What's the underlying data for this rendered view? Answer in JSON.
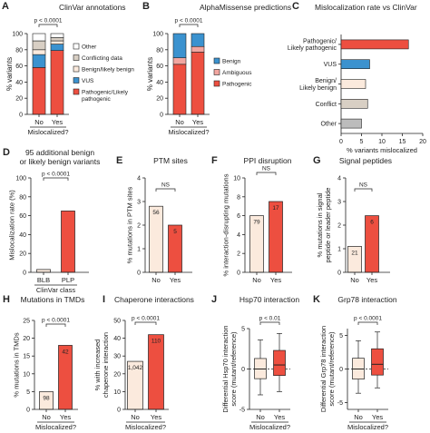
{
  "colors": {
    "red": "#ed4f40",
    "blue": "#3b92cf",
    "light_red": "#f2a6a0",
    "cream": "#fbeadd",
    "beige": "#d8cfc4",
    "white": "#ffffff",
    "gray": "#bcbcbc",
    "axis": "#222222"
  },
  "chart_data": [
    {
      "id": "A",
      "panel_letter": "A",
      "type": "bar",
      "stacked": true,
      "title": "ClinVar annotations",
      "ylabel": "% variants",
      "xlabel": "Mislocalized?",
      "categories": [
        "No",
        "Yes"
      ],
      "ylim": [
        0,
        100
      ],
      "yticks": [
        "0",
        "20",
        "40",
        "60",
        "80",
        "100"
      ],
      "bracket": "p < 0.0001",
      "series": [
        {
          "name": "Pathogenic/Likely pathogenic",
          "color": "#ed4f40",
          "values": [
            58,
            79
          ]
        },
        {
          "name": "VUS",
          "color": "#3b92cf",
          "values": [
            16,
            8
          ]
        },
        {
          "name": "Benign/likely benign",
          "color": "#fbeadd",
          "values": [
            6,
            4
          ]
        },
        {
          "name": "Conflicting data",
          "color": "#d8cfc4",
          "values": [
            11,
            4
          ]
        },
        {
          "name": "Other",
          "color": "#ffffff",
          "values": [
            9,
            5
          ]
        }
      ],
      "legend": [
        "Other",
        "Conflicting data",
        "Benign/likely benign",
        "VUS",
        "Pathogenic/Likely pathogenic"
      ]
    },
    {
      "id": "B",
      "panel_letter": "B",
      "type": "bar",
      "stacked": true,
      "title": "AlphaMissense predictions",
      "ylabel": "% variants",
      "xlabel": "Mislocalized?",
      "categories": [
        "No",
        "Yes"
      ],
      "ylim": [
        0,
        100
      ],
      "yticks": [
        "0",
        "20",
        "40",
        "60",
        "80",
        "100"
      ],
      "bracket": "p < 0.0001",
      "series": [
        {
          "name": "Pathogenic",
          "color": "#ed4f40",
          "values": [
            62,
            77
          ]
        },
        {
          "name": "Ambiguous",
          "color": "#f2a6a0",
          "values": [
            8,
            7
          ]
        },
        {
          "name": "Benign",
          "color": "#3b92cf",
          "values": [
            30,
            16
          ]
        }
      ],
      "legend": [
        "Benign",
        "Ambiguous",
        "Pathogenic"
      ]
    },
    {
      "id": "C",
      "panel_letter": "C",
      "type": "bar",
      "orientation": "horizontal",
      "title": "Mislocalization rate vs ClinVar",
      "xlabel": "% variants mislocalized",
      "categories": [
        "Pathogenic/ Likely pathogenic",
        "VUS",
        "Benign/ Likely benign",
        "Conflict",
        "Other"
      ],
      "values": [
        16.5,
        7,
        6,
        6.5,
        5
      ],
      "colors": [
        "#ed4f40",
        "#3b92cf",
        "#fbeadd",
        "#d8cfc4",
        "#bcbcbc"
      ],
      "xlim": [
        0,
        20
      ],
      "xticks": [
        "0",
        "5",
        "10",
        "15",
        "20"
      ]
    },
    {
      "id": "D",
      "panel_letter": "D",
      "type": "bar",
      "title": "95 additional benign or likely benign variants",
      "ylabel": "Mislocalization rate (%)",
      "xlabel": "ClinVar class",
      "categories": [
        "BLB",
        "PLP"
      ],
      "values": [
        3,
        65
      ],
      "colors": [
        "#fbeadd",
        "#ed4f40"
      ],
      "ylim": [
        0,
        100
      ],
      "yticks": [
        "0",
        "20",
        "40",
        "60",
        "80",
        "100"
      ],
      "bracket": "p < 0.0001"
    },
    {
      "id": "E",
      "panel_letter": "E",
      "type": "bar",
      "title": "PTM sites",
      "ylabel": "% mutations in PTM sites",
      "categories": [
        "No",
        "Yes"
      ],
      "values": [
        2.8,
        2.0
      ],
      "labels": [
        "56",
        "5"
      ],
      "colors": [
        "#fbeadd",
        "#ed4f40"
      ],
      "ylim": [
        0,
        4
      ],
      "yticks": [
        "0",
        "1",
        "2",
        "3",
        "4"
      ],
      "bracket": "NS"
    },
    {
      "id": "F",
      "panel_letter": "F",
      "type": "bar",
      "title": "PPI disruption",
      "ylabel": "% interaction-disrupting mutations",
      "categories": [
        "No",
        "Yes"
      ],
      "values": [
        6,
        7.5
      ],
      "labels": [
        "79",
        "17"
      ],
      "colors": [
        "#fbeadd",
        "#ed4f40"
      ],
      "ylim": [
        0,
        10
      ],
      "yticks": [
        "0",
        "2",
        "4",
        "6",
        "8",
        "10"
      ],
      "bracket": "NS"
    },
    {
      "id": "G",
      "panel_letter": "G",
      "type": "bar",
      "title": "Signal peptides",
      "ylabel": "% mutations in signal peptide or leader peptide",
      "categories": [
        "No",
        "Yes"
      ],
      "values": [
        1.1,
        2.4
      ],
      "labels": [
        "21",
        "6"
      ],
      "colors": [
        "#fbeadd",
        "#ed4f40"
      ],
      "ylim": [
        0,
        4
      ],
      "yticks": [
        "0",
        "1",
        "2",
        "3",
        "4"
      ],
      "bracket": "NS"
    },
    {
      "id": "H",
      "panel_letter": "H",
      "type": "bar",
      "title": "Mutations in TMDs",
      "ylabel": "% mutations in TMDs",
      "xlabel": "Mislocalized?",
      "categories": [
        "No",
        "Yes"
      ],
      "values": [
        5,
        18
      ],
      "labels": [
        "98",
        "42"
      ],
      "colors": [
        "#fbeadd",
        "#ed4f40"
      ],
      "ylim": [
        0,
        25
      ],
      "yticks": [
        "0",
        "5",
        "10",
        "15",
        "20",
        "25"
      ],
      "bracket": "p < 0.0001"
    },
    {
      "id": "I",
      "panel_letter": "I",
      "type": "bar",
      "title": "Chaperone interactions",
      "ylabel": "% with increased chaperone interaction",
      "xlabel": "Mislocalized?",
      "categories": [
        "No",
        "Yes"
      ],
      "values": [
        27,
        42
      ],
      "labels": [
        "1,042",
        "110"
      ],
      "colors": [
        "#fbeadd",
        "#ed4f40"
      ],
      "ylim": [
        0,
        50
      ],
      "yticks": [
        "0",
        "10",
        "20",
        "30",
        "40",
        "50"
      ],
      "bracket": "p < 0.0001"
    },
    {
      "id": "J",
      "panel_letter": "J",
      "type": "box",
      "title": "Hsp70 interaction",
      "ylabel": "Differential Hsp70 interaction score (mutant/reference)",
      "xlabel": "Mislocalized?",
      "categories": [
        "No",
        "Yes"
      ],
      "boxes": [
        {
          "whisker_low": -3.2,
          "q1": -1.2,
          "median": 0,
          "q3": 1.3,
          "whisker_high": 3.6
        },
        {
          "whisker_low": -2.8,
          "q1": -0.8,
          "median": 0.5,
          "q3": 2.3,
          "whisker_high": 4.4
        }
      ],
      "colors": [
        "#fbeadd",
        "#ed4f40"
      ],
      "ylim": [
        -5,
        5
      ],
      "yticks": [
        "-5",
        "0",
        "5"
      ],
      "bracket": "p < 0.01"
    },
    {
      "id": "K",
      "panel_letter": "K",
      "type": "box",
      "title": "Grp78 interaction",
      "ylabel": "Differential Grp78 interaction score (mutant/reference)",
      "xlabel": "Mislocalized?",
      "categories": [
        "No",
        "Yes"
      ],
      "boxes": [
        {
          "whisker_low": -3.6,
          "q1": -1.5,
          "median": 0,
          "q3": 1.6,
          "whisker_high": 4.2
        },
        {
          "whisker_low": -2.8,
          "q1": -0.9,
          "median": 0.7,
          "q3": 3.0,
          "whisker_high": 5.5
        }
      ],
      "colors": [
        "#fbeadd",
        "#ed4f40"
      ],
      "ylim": [
        -6,
        6
      ],
      "yticks": [
        "-5",
        "0",
        "5"
      ],
      "bracket": "p < 0.0001"
    }
  ]
}
